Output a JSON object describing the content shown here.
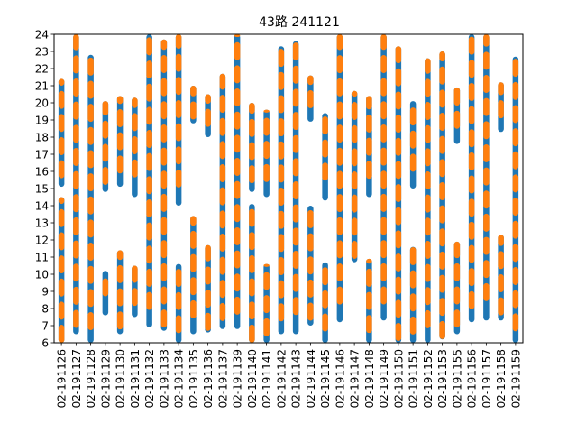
{
  "chart_data": {
    "type": "bar",
    "title": "43路  241121",
    "xlabel": "",
    "ylabel": "",
    "ylim": [
      6,
      24
    ],
    "yticks": [
      6,
      7,
      8,
      9,
      10,
      11,
      12,
      13,
      14,
      15,
      16,
      17,
      18,
      19,
      20,
      21,
      22,
      23,
      24
    ],
    "grid": false,
    "colors": {
      "blue": "#1f77b4",
      "orange": "#ff7f0e"
    },
    "categories": [
      "02-191126",
      "02-191127",
      "02-191128",
      "02-191129",
      "02-191130",
      "02-191131",
      "02-191132",
      "02-191133",
      "02-191134",
      "02-191135",
      "02-191136",
      "02-191137",
      "02-191139",
      "02-191140",
      "02-191141",
      "02-191142",
      "02-191143",
      "02-191144",
      "02-191145",
      "02-191146",
      "02-191147",
      "02-191148",
      "02-191149",
      "02-191150",
      "02-191151",
      "02-191152",
      "02-191153",
      "02-191155",
      "02-191156",
      "02-191157",
      "02-191158",
      "02-191159"
    ],
    "ranges": [
      [
        [
          6,
          14.5
        ],
        [
          15.1,
          21.4
        ]
      ],
      [
        [
          6.5,
          24
        ]
      ],
      [
        [
          6,
          22.8
        ]
      ],
      [
        [
          7.6,
          10.2
        ],
        [
          14.8,
          20.1
        ]
      ],
      [
        [
          6.5,
          11.4
        ],
        [
          15.1,
          20.4
        ]
      ],
      [
        [
          7.5,
          10.5
        ],
        [
          14.5,
          20.3
        ]
      ],
      [
        [
          6.9,
          24
        ]
      ],
      [
        [
          6.7,
          23.7
        ]
      ],
      [
        [
          6,
          10.6
        ],
        [
          14,
          24
        ]
      ],
      [
        [
          6.5,
          13.4
        ],
        [
          18.8,
          21
        ]
      ],
      [
        [
          6.6,
          11.7
        ],
        [
          18,
          20.5
        ]
      ],
      [
        [
          6.8,
          21.7
        ]
      ],
      [
        [
          6.8,
          24
        ]
      ],
      [
        [
          6,
          14.1
        ],
        [
          14.8,
          20
        ]
      ],
      [
        [
          6,
          10.6
        ],
        [
          14.5,
          19.6
        ]
      ],
      [
        [
          6.5,
          23.3
        ]
      ],
      [
        [
          6.5,
          23.6
        ]
      ],
      [
        [
          7,
          14
        ],
        [
          18.9,
          21.6
        ]
      ],
      [
        [
          6,
          10.7
        ],
        [
          14.3,
          19.4
        ]
      ],
      [
        [
          7.2,
          24
        ]
      ],
      [
        [
          10.7,
          20.7
        ]
      ],
      [
        [
          6,
          10.9
        ],
        [
          14.5,
          20.4
        ]
      ],
      [
        [
          7.3,
          24
        ]
      ],
      [
        [
          6,
          23.3
        ]
      ],
      [
        [
          6,
          11.6
        ],
        [
          15,
          20.1
        ]
      ],
      [
        [
          6,
          22.6
        ]
      ],
      [
        [
          6.2,
          23
        ]
      ],
      [
        [
          6.5,
          11.9
        ],
        [
          17.6,
          20.9
        ]
      ],
      [
        [
          7.2,
          24
        ]
      ],
      [
        [
          7.3,
          24
        ]
      ],
      [
        [
          7.3,
          12.3
        ],
        [
          18.3,
          21.2
        ]
      ],
      [
        [
          6,
          22.7
        ]
      ]
    ]
  }
}
